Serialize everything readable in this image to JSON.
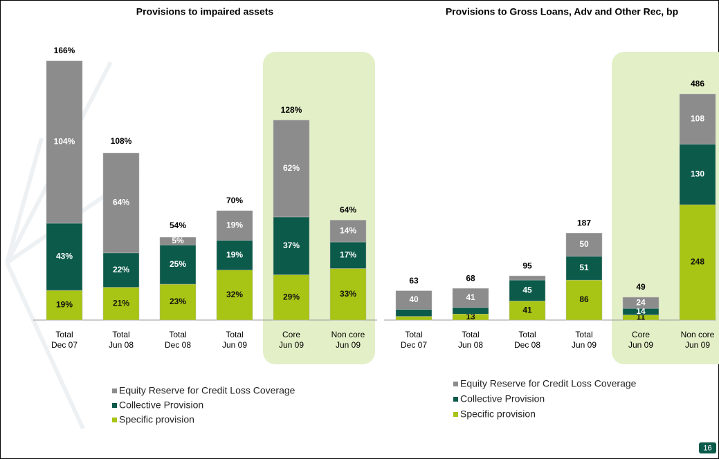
{
  "chart_data": [
    {
      "type": "bar",
      "stacked": true,
      "title": "Provisions to impaired assets",
      "categories": [
        "Total\nDec 07",
        "Total\nJun 08",
        "Total\nDec 08",
        "Total\nJun 09",
        "Core\nJun 09",
        "Non core\nJun 09"
      ],
      "series": [
        {
          "name": "Specific provision",
          "color": "#a8c414",
          "values": [
            19,
            21,
            23,
            32,
            29,
            33
          ],
          "value_labels": [
            "19%",
            "21%",
            "23%",
            "32%",
            "29%",
            "33%"
          ]
        },
        {
          "name": "Collective Provision",
          "color": "#0b5a4a",
          "values": [
            43,
            22,
            25,
            19,
            37,
            17
          ],
          "value_labels": [
            "43%",
            "22%",
            "25%",
            "19%",
            "37%",
            "17%"
          ]
        },
        {
          "name": "Equity Reserve for Credit Loss Coverage",
          "color": "#8c8c8c",
          "values": [
            104,
            64,
            5,
            19,
            62,
            14
          ],
          "value_labels": [
            "104%",
            "64%",
            "5%",
            "19%",
            "62%",
            "14%"
          ]
        }
      ],
      "totals": [
        166,
        108,
        54,
        70,
        128,
        64
      ],
      "total_labels": [
        "166%",
        "108%",
        "54%",
        "70%",
        "128%",
        "64%"
      ]
    },
    {
      "type": "bar",
      "stacked": true,
      "title": "Provisions to Gross Loans, Adv and Other Rec, bp",
      "categories": [
        "Total\nDec 07",
        "Total\nJun 08",
        "Total\nDec 08",
        "Total\nJun 09",
        "Core\nJun 09",
        "Non core\nJun 09"
      ],
      "series": [
        {
          "name": "Specific provision",
          "color": "#a8c414",
          "values": [
            8,
            13,
            41,
            86,
            11,
            248
          ],
          "value_labels": [
            null,
            "13",
            "41",
            "86",
            "11",
            "248"
          ]
        },
        {
          "name": "Collective Provision",
          "color": "#0b5a4a",
          "values": [
            15,
            14,
            45,
            51,
            14,
            130
          ],
          "value_labels": [
            null,
            null,
            "45",
            "51",
            "14",
            "130"
          ]
        },
        {
          "name": "Equity Reserve for Credit Loss Coverage",
          "color": "#8c8c8c",
          "values": [
            40,
            41,
            9,
            50,
            24,
            108
          ],
          "value_labels": [
            "40",
            "41",
            null,
            "50",
            "24",
            "108"
          ]
        }
      ],
      "totals": [
        63,
        68,
        95,
        187,
        49,
        486
      ],
      "total_labels": [
        "63",
        "68",
        "95",
        "187",
        "49",
        "486"
      ]
    }
  ],
  "page_number": "16"
}
